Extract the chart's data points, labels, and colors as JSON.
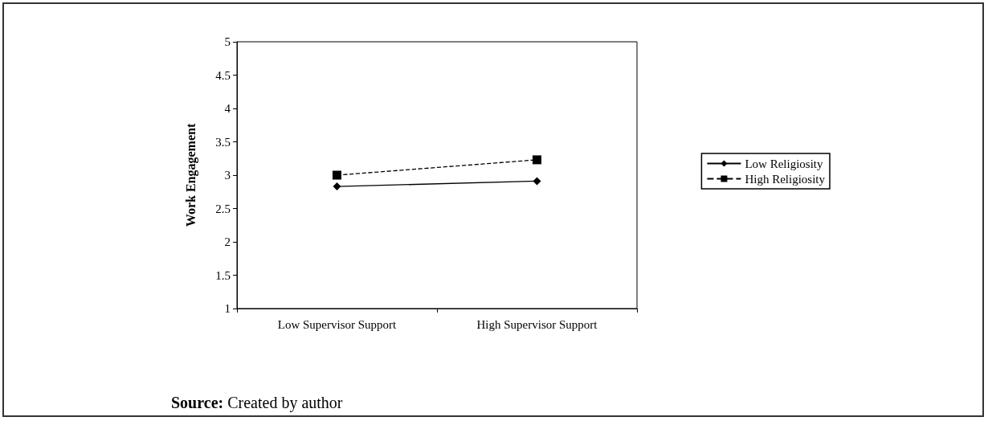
{
  "chart_data": {
    "type": "line",
    "ylabel": "Work Engagement",
    "categories": [
      "Low Supervisor Support",
      "High Supervisor Support"
    ],
    "series": [
      {
        "name": "Low Religiosity",
        "color": "#000000",
        "values": [
          2.83,
          2.91
        ],
        "marker": "diamond",
        "line_style": "solid"
      },
      {
        "name": "High Religiosity",
        "color": "#000000",
        "values": [
          3.0,
          3.23
        ],
        "marker": "square",
        "line_style": "dashed"
      }
    ],
    "ylim": [
      1,
      5
    ],
    "yticks": [
      1,
      1.5,
      2,
      2.5,
      3,
      3.5,
      4,
      4.5,
      5
    ],
    "grid": false,
    "legend": "right",
    "annotations": [
      "Source: Created by author"
    ]
  }
}
